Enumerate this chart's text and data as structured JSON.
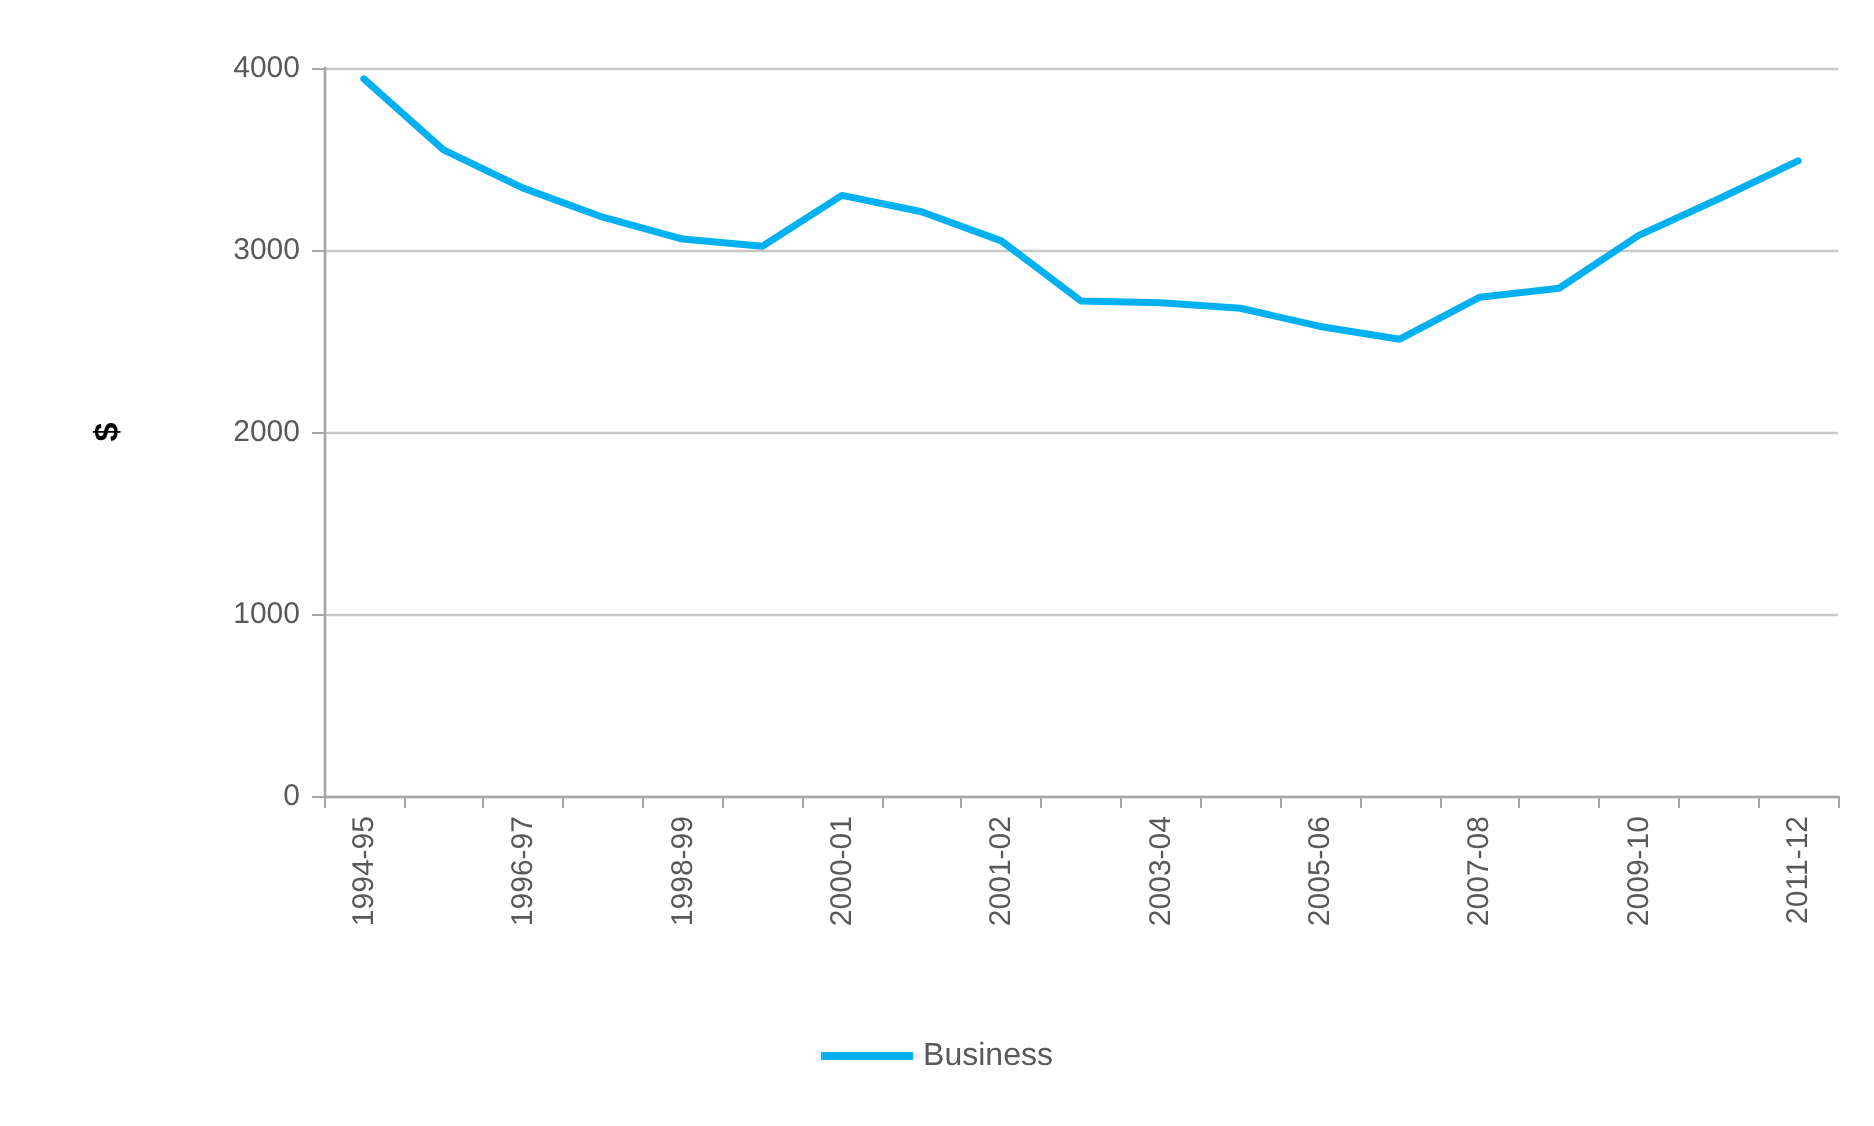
{
  "chart_data": {
    "type": "line",
    "ylabel": "$",
    "categories": [
      "1994-95",
      null,
      "1996-97",
      null,
      "1998-99",
      null,
      "2000-01",
      null,
      "2001-02",
      null,
      "2003-04",
      null,
      "2005-06",
      null,
      "2007-08",
      null,
      "2009-10",
      null,
      "2011-12"
    ],
    "series": [
      {
        "name": "Business",
        "color": "#00b0f0",
        "values": [
          3940,
          3550,
          3340,
          3180,
          3060,
          3020,
          3300,
          3210,
          3050,
          2720,
          2710,
          2680,
          2580,
          2510,
          2740,
          2790,
          3080,
          3280,
          3490
        ]
      }
    ],
    "ylim": [
      0,
      4000
    ],
    "yticks": [
      0,
      1000,
      2000,
      3000,
      4000
    ],
    "grid": "y",
    "legend": "bottom",
    "marker": "none",
    "line_style": "solid"
  }
}
